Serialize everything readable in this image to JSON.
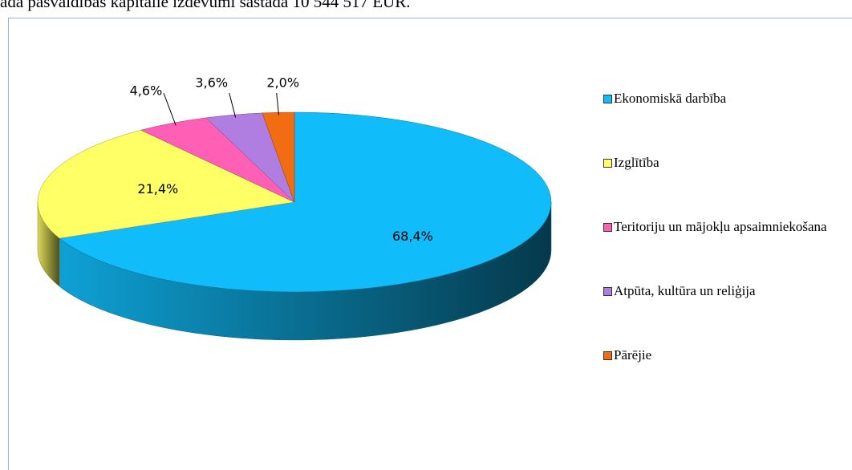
{
  "top_text": "ada pašvaldības kapitālie izdevumi sastāda 10 544 517 EUR.",
  "chart_data": {
    "type": "pie3d",
    "categories": [
      "Ekonomiskā darbība",
      "Izglītība",
      "Teritoriju un mājokļu apsaimniekošana",
      "Atpūta, kultūra un reliģija",
      "Pārējie"
    ],
    "values": [
      68.4,
      21.4,
      4.6,
      3.6,
      2.0
    ],
    "value_labels": [
      "68,4%",
      "21,4%",
      "4,6%",
      "3,6%",
      "2,0%"
    ],
    "colors": [
      "#10bdfa",
      "#ffff66",
      "#ff5fb4",
      "#b07de0",
      "#f26c12"
    ],
    "legend": "right"
  }
}
